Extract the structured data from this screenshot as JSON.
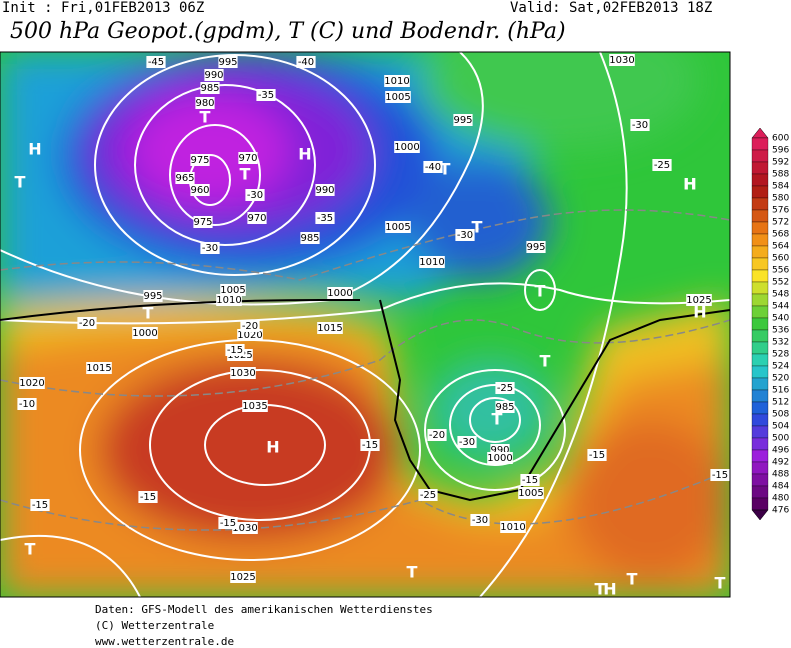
{
  "header": {
    "init": "Init : Fri,01FEB2013 06Z",
    "valid": "Valid: Sat,02FEB2013 18Z",
    "title": "500 hPa Geopot.(gpdm), T (C) und Bodendr. (hPa)"
  },
  "footer": [
    "Daten: GFS-Modell des amerikanischen Wetterdienstes",
    "(C) Wetterzentrale",
    "www.wetterzentrale.de"
  ],
  "colorbar": {
    "ticks": [
      600,
      596,
      592,
      588,
      584,
      580,
      576,
      572,
      568,
      564,
      560,
      556,
      552,
      548,
      544,
      540,
      536,
      532,
      528,
      524,
      520,
      516,
      512,
      508,
      504,
      500,
      496,
      492,
      488,
      484,
      480,
      476
    ]
  },
  "map_labels": [
    "H",
    "T",
    "T",
    "T",
    "H",
    "T",
    "T",
    "T",
    "T",
    "T",
    "H",
    "H",
    "T",
    "H",
    "T",
    "T",
    "T",
    "T",
    "H",
    "H",
    "T",
    "995",
    "990",
    "985",
    "980",
    "975",
    "970",
    "965",
    "960",
    "975",
    "970",
    "985",
    "990",
    "1000",
    "1010",
    "1005",
    "995",
    "1000",
    "1005",
    "1010",
    "995",
    "1005",
    "1010",
    "1015",
    "1020",
    "1025",
    "1030",
    "1035",
    "1030",
    "1025",
    "1020",
    "1015",
    "1000",
    "995",
    "985",
    "990",
    "1000",
    "1005",
    "1010",
    "1025",
    "1030",
    "-45",
    "-40",
    "-35",
    "-30",
    "-25",
    "-30",
    "-35",
    "-40",
    "-30",
    "-20",
    "-15",
    "-15",
    "-10",
    "-20",
    "-30",
    "-25",
    "-30",
    "-20",
    "-15",
    "-15",
    "-15",
    "-15",
    "-15",
    "-15",
    "-25",
    "-30"
  ]
}
